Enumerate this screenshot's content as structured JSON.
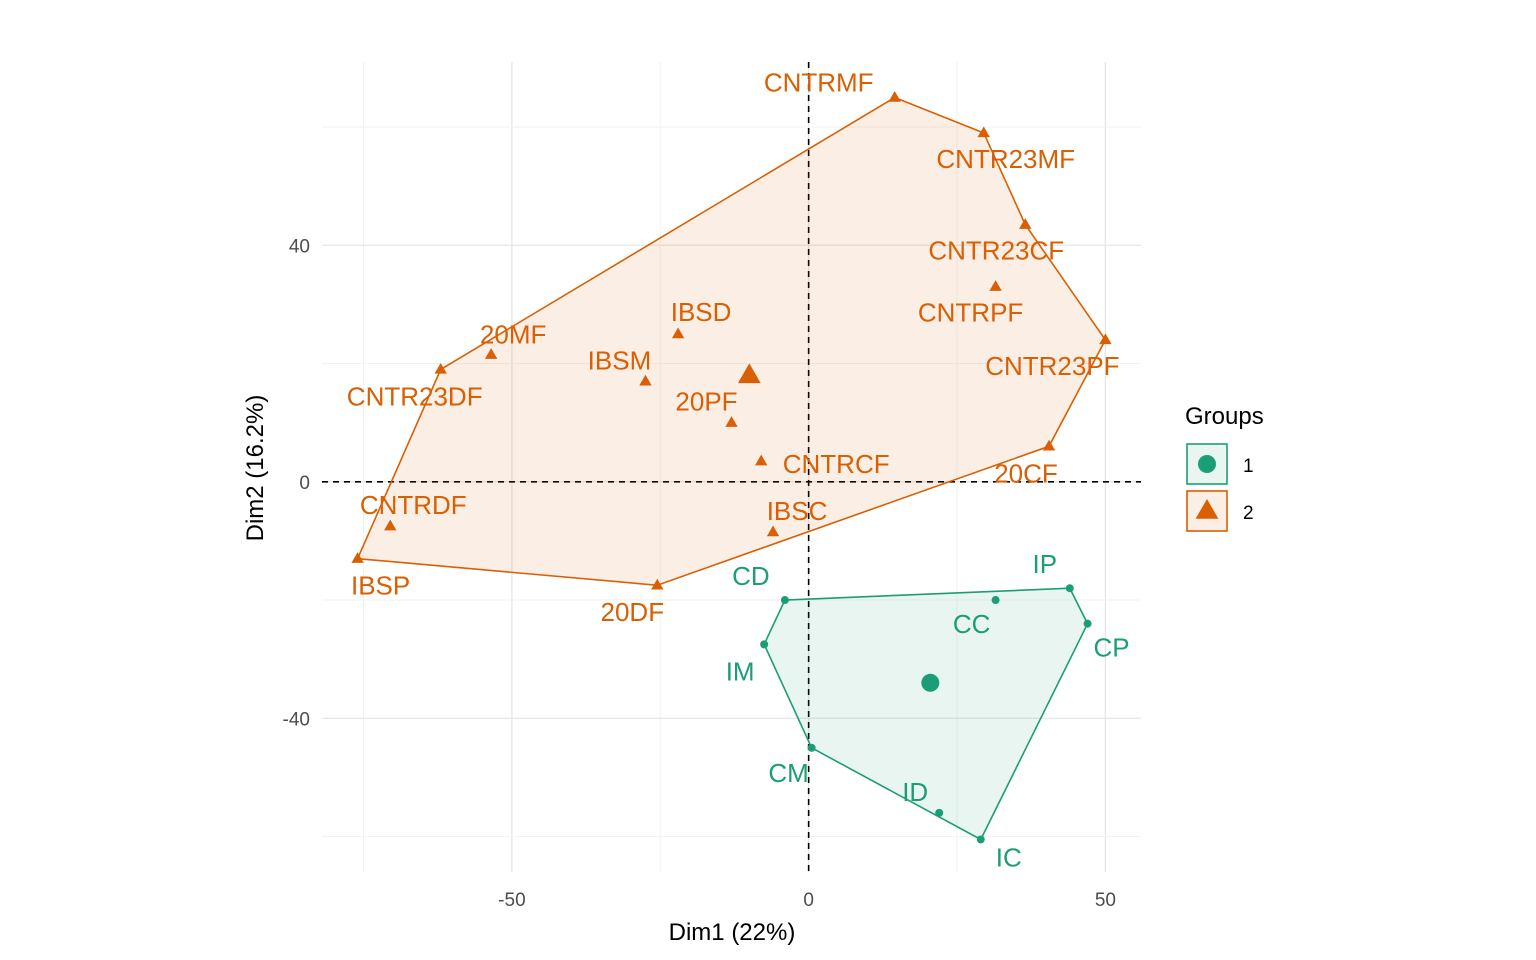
{
  "chart_data": {
    "type": "scatter",
    "xlabel": "Dim1 (22%)",
    "ylabel": "Dim2 (16.2%)",
    "xlim": [
      -82,
      56
    ],
    "ylim": [
      -66,
      71
    ],
    "xticks": [
      -50,
      0,
      50
    ],
    "yticks": [
      -40,
      0,
      40
    ],
    "grid": true,
    "reference_lines": {
      "x": 0,
      "y": 0,
      "style": "dashed"
    },
    "legend": {
      "title": "Groups",
      "position": "right",
      "entries": [
        {
          "label": "1",
          "color": "#1B9E77",
          "shape": "circle"
        },
        {
          "label": "2",
          "color": "#D95F02",
          "shape": "triangle"
        }
      ]
    },
    "series": [
      {
        "name": "1",
        "color": "#1B9E77",
        "shape": "circle",
        "centroid": [
          20.5,
          -34
        ],
        "hull": [
          "CD",
          "IP",
          "CP",
          "IC",
          "CM",
          "IM"
        ],
        "points": [
          {
            "label": "CD",
            "x": -4,
            "y": -20
          },
          {
            "label": "IP",
            "x": 44,
            "y": -18
          },
          {
            "label": "CC",
            "x": 31.5,
            "y": -20
          },
          {
            "label": "CP",
            "x": 47,
            "y": -24
          },
          {
            "label": "IM",
            "x": -7.5,
            "y": -27.5
          },
          {
            "label": "CM",
            "x": 0.5,
            "y": -45
          },
          {
            "label": "ID",
            "x": 22,
            "y": -56
          },
          {
            "label": "IC",
            "x": 29,
            "y": -60.5
          }
        ]
      },
      {
        "name": "2",
        "color": "#D95F02",
        "shape": "triangle",
        "centroid": [
          -10,
          18
        ],
        "hull": [
          "CNTRMF",
          "CNTR23MF",
          "CNTR23CF",
          "CNTR23PF",
          "20CF",
          "20DF",
          "IBSP",
          "CNTR23DF"
        ],
        "points": [
          {
            "label": "CNTRMF",
            "x": 14.5,
            "y": 65
          },
          {
            "label": "CNTR23MF",
            "x": 29.5,
            "y": 59
          },
          {
            "label": "CNTR23CF",
            "x": 36.5,
            "y": 43.5
          },
          {
            "label": "CNTRPF",
            "x": 31.5,
            "y": 33
          },
          {
            "label": "CNTR23PF",
            "x": 50,
            "y": 24
          },
          {
            "label": "20CF",
            "x": 40.5,
            "y": 6
          },
          {
            "label": "IBSD",
            "x": -22,
            "y": 25
          },
          {
            "label": "20MF",
            "x": -53.5,
            "y": 21.5
          },
          {
            "label": "IBSM",
            "x": -27.5,
            "y": 17
          },
          {
            "label": "CNTR23DF",
            "x": -62,
            "y": 19
          },
          {
            "label": "20PF",
            "x": -13,
            "y": 10
          },
          {
            "label": "CNTRCF",
            "x": -8,
            "y": 3.5
          },
          {
            "label": "IBSC",
            "x": -6,
            "y": -8.5
          },
          {
            "label": "CNTRDF",
            "x": -70.5,
            "y": -7.5
          },
          {
            "label": "IBSP",
            "x": -76,
            "y": -13
          },
          {
            "label": "20DF",
            "x": -25.5,
            "y": -17.5
          }
        ]
      }
    ]
  }
}
